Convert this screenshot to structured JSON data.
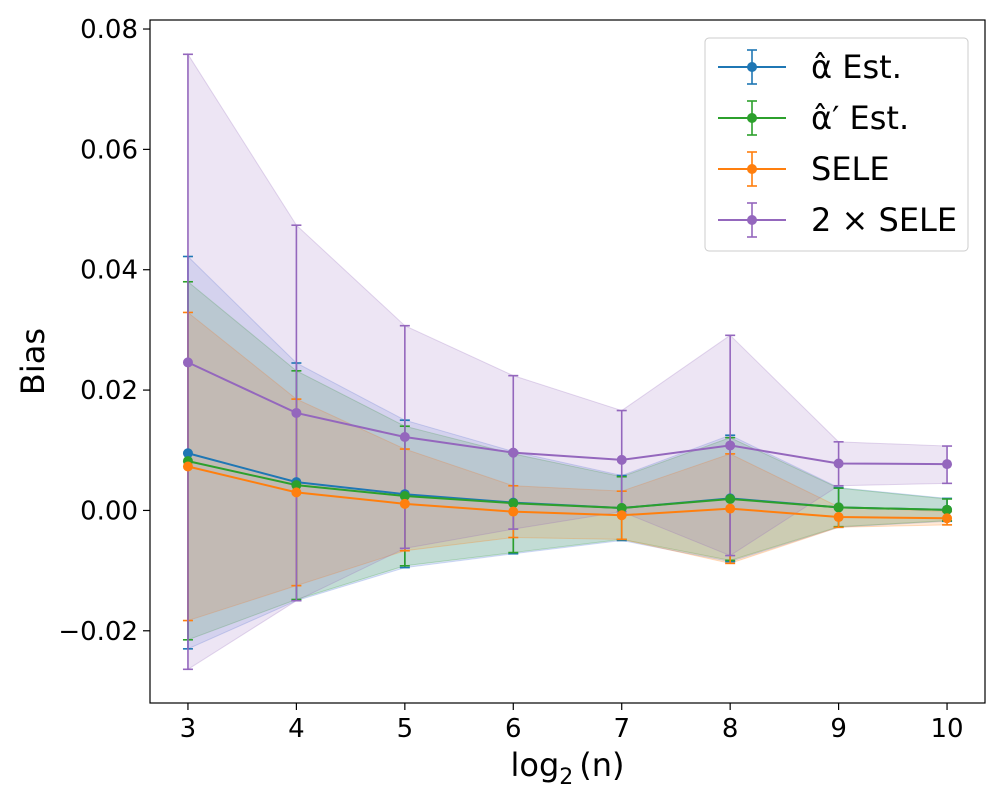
{
  "chart_data": {
    "type": "line",
    "title": "",
    "xlabel_base": "log",
    "xlabel_sub": "2",
    "xlabel_arg": "(n)",
    "ylabel": "Bias",
    "xlim": [
      2.65,
      10.35
    ],
    "ylim": [
      -0.032,
      0.0815
    ],
    "x": [
      3,
      4,
      5,
      6,
      7,
      8,
      9,
      10
    ],
    "xticks": [
      {
        "value": 3,
        "label": "3"
      },
      {
        "value": 4,
        "label": "4"
      },
      {
        "value": 5,
        "label": "5"
      },
      {
        "value": 6,
        "label": "6"
      },
      {
        "value": 7,
        "label": "7"
      },
      {
        "value": 8,
        "label": "8"
      },
      {
        "value": 9,
        "label": "9"
      },
      {
        "value": 10,
        "label": "10"
      }
    ],
    "yticks": [
      {
        "value": -0.02,
        "label": "−0.02"
      },
      {
        "value": 0.0,
        "label": "0.00"
      },
      {
        "value": 0.02,
        "label": "0.02"
      },
      {
        "value": 0.04,
        "label": "0.04"
      },
      {
        "value": 0.06,
        "label": "0.06"
      },
      {
        "value": 0.08,
        "label": "0.08"
      }
    ],
    "grid": false,
    "legend_position": "top-right",
    "series": [
      {
        "key": "alpha-hat",
        "name": "α̂ Est.",
        "color": "#1f77b4",
        "band_color": "#4e79d6",
        "values": [
          0.0095,
          0.0047,
          0.0027,
          0.0013,
          0.0004,
          0.002,
          0.0005,
          0.0001
        ],
        "lower": [
          -0.023,
          -0.015,
          -0.0095,
          -0.0072,
          -0.005,
          -0.0085,
          -0.0028,
          -0.0018
        ],
        "upper": [
          0.0422,
          0.0245,
          0.015,
          0.0098,
          0.0058,
          0.0125,
          0.0038,
          0.002
        ]
      },
      {
        "key": "alpha-hat-prime",
        "name": "α̂′ Est.",
        "color": "#2ca02c",
        "band_color": "#2ca02c",
        "values": [
          0.0082,
          0.0042,
          0.0024,
          0.0012,
          0.0004,
          0.0019,
          0.0005,
          0.0001
        ],
        "lower": [
          -0.0215,
          -0.0148,
          -0.0092,
          -0.007,
          -0.0048,
          -0.0083,
          -0.0027,
          -0.0017
        ],
        "upper": [
          0.038,
          0.0232,
          0.014,
          0.0094,
          0.0056,
          0.0121,
          0.0037,
          0.0019
        ]
      },
      {
        "key": "sele",
        "name": "SELE",
        "color": "#ff7f0e",
        "band_color": "#ff7f0e",
        "values": [
          0.0073,
          0.003,
          0.0011,
          -0.0002,
          -0.0008,
          0.0003,
          -0.0011,
          -0.0013
        ],
        "lower": [
          -0.0183,
          -0.0125,
          -0.0067,
          -0.0045,
          -0.0048,
          -0.0088,
          -0.0028,
          -0.0024
        ],
        "upper": [
          0.0329,
          0.0185,
          0.0102,
          0.0041,
          0.0032,
          0.0094,
          0.0006,
          -0.0002
        ]
      },
      {
        "key": "2x-sele",
        "name": "2 × SELE",
        "color": "#9467bd",
        "band_color": "#9467bd",
        "values": [
          0.0246,
          0.0162,
          0.0122,
          0.0096,
          0.0084,
          0.0108,
          0.0078,
          0.0077
        ],
        "lower": [
          -0.0264,
          -0.015,
          -0.0063,
          -0.0031,
          -0.0002,
          -0.0075,
          0.0041,
          0.0045
        ],
        "upper": [
          0.0758,
          0.0474,
          0.0307,
          0.0224,
          0.0166,
          0.0291,
          0.0114,
          0.0107
        ]
      }
    ]
  }
}
